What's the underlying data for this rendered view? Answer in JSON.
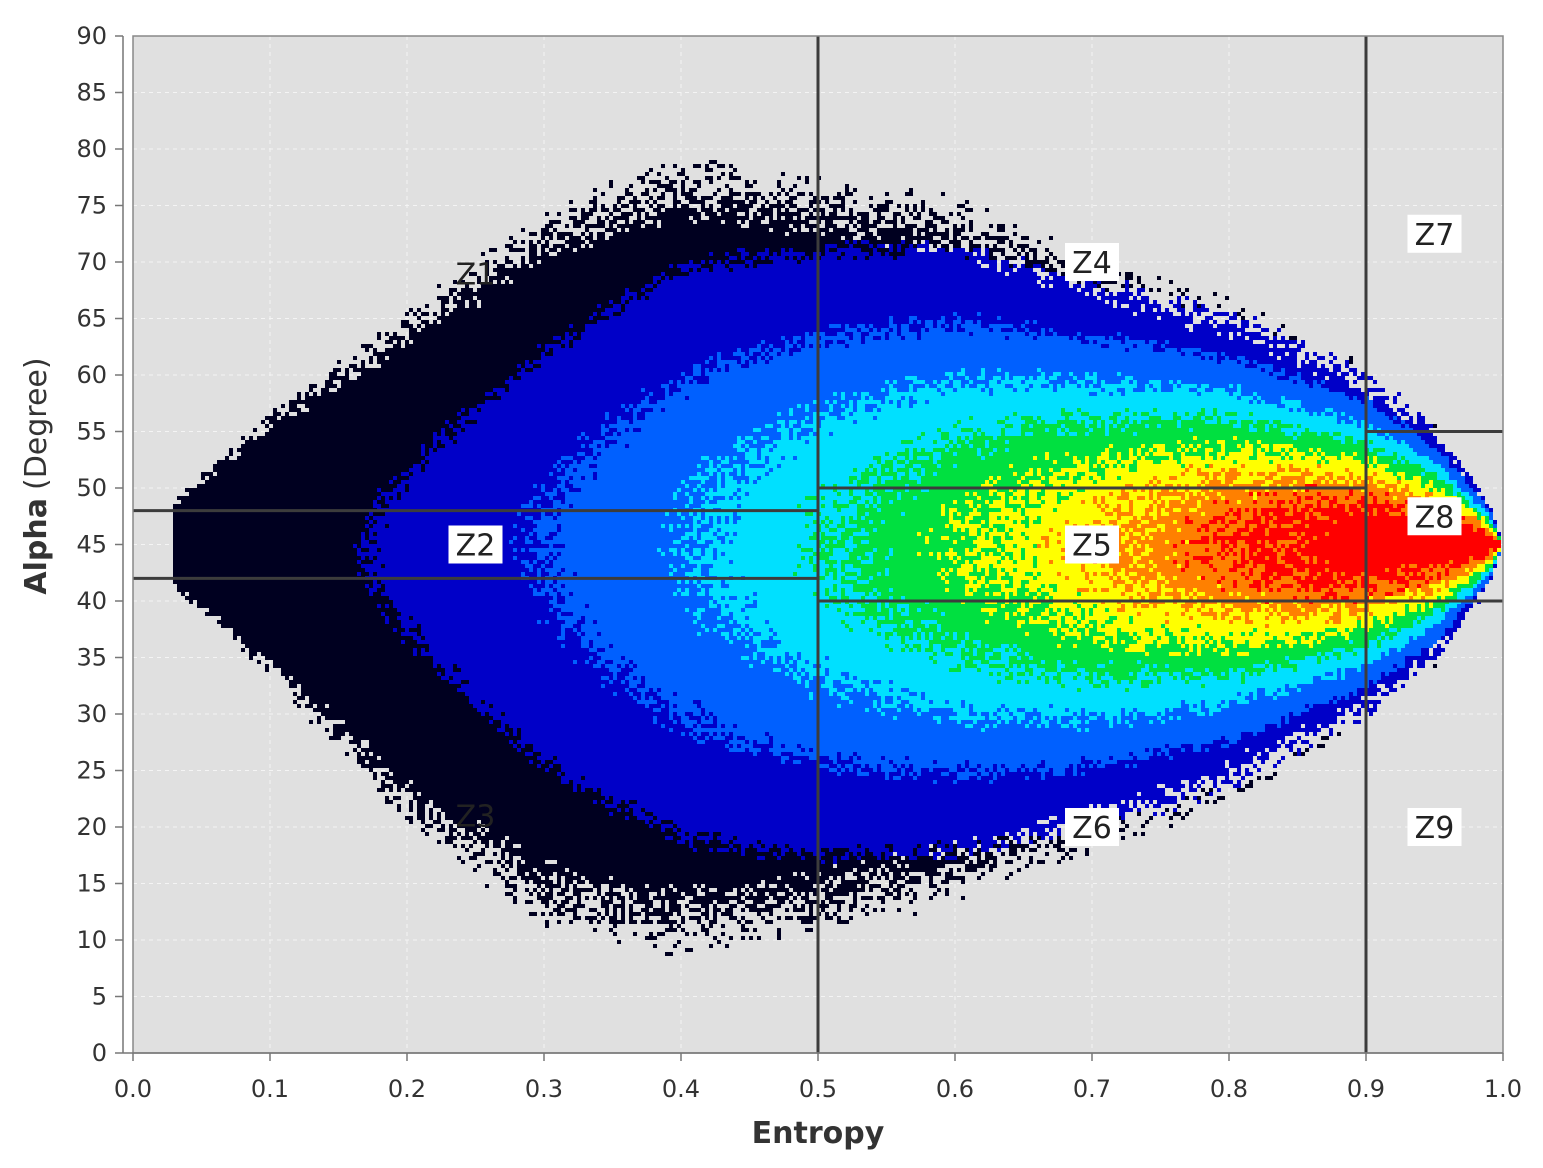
{
  "chart_data": {
    "type": "heatmap",
    "xlabel": "Entropy",
    "ylabel": "Alpha (Degree)",
    "ylabel_parts": {
      "bold": "Alpha",
      "normal": "(Degree)"
    },
    "xlim": [
      0.0,
      1.0
    ],
    "ylim": [
      0,
      90
    ],
    "x_ticks": [
      "0.0",
      "0.1",
      "0.2",
      "0.3",
      "0.4",
      "0.5",
      "0.6",
      "0.7",
      "0.8",
      "0.9",
      "1.0"
    ],
    "y_ticks": [
      "0",
      "5",
      "10",
      "15",
      "20",
      "25",
      "30",
      "35",
      "40",
      "45",
      "50",
      "55",
      "60",
      "65",
      "70",
      "75",
      "80",
      "85",
      "90"
    ],
    "x_tick_values": [
      0.0,
      0.1,
      0.2,
      0.3,
      0.4,
      0.5,
      0.6,
      0.7,
      0.8,
      0.9,
      1.0
    ],
    "y_tick_values": [
      0,
      5,
      10,
      15,
      20,
      25,
      30,
      35,
      40,
      45,
      50,
      55,
      60,
      65,
      70,
      75,
      80,
      85,
      90
    ],
    "grid": true,
    "background_color": "#e0e0e0",
    "zone_line_color": "#3c3c3c",
    "colormap": [
      "#000020",
      "#0000c8",
      "#0060ff",
      "#00e0ff",
      "#00e040",
      "#ffff00",
      "#ff8000",
      "#ff0000"
    ],
    "zone_boundaries": {
      "vertical": [
        {
          "x": 0.5,
          "y_from": 0,
          "y_to": 90
        },
        {
          "x": 0.9,
          "y_from": 0,
          "y_to": 90
        }
      ],
      "horizontal": [
        {
          "y": 48,
          "x_from": 0.0,
          "x_to": 0.5
        },
        {
          "y": 42,
          "x_from": 0.0,
          "x_to": 0.5
        },
        {
          "y": 50,
          "x_from": 0.5,
          "x_to": 0.9
        },
        {
          "y": 40,
          "x_from": 0.5,
          "x_to": 1.0
        },
        {
          "y": 55,
          "x_from": 0.9,
          "x_to": 1.0
        }
      ]
    },
    "zones": [
      {
        "label": "Z1",
        "x": 0.25,
        "y": 69,
        "boxed": false
      },
      {
        "label": "Z2",
        "x": 0.25,
        "y": 45,
        "boxed": true
      },
      {
        "label": "Z3",
        "x": 0.25,
        "y": 21,
        "boxed": false
      },
      {
        "label": "Z4",
        "x": 0.7,
        "y": 70,
        "boxed": true
      },
      {
        "label": "Z5",
        "x": 0.7,
        "y": 45,
        "boxed": true
      },
      {
        "label": "Z6",
        "x": 0.7,
        "y": 20,
        "boxed": true
      },
      {
        "label": "Z7",
        "x": 0.95,
        "y": 72.5,
        "boxed": true
      },
      {
        "label": "Z8",
        "x": 0.95,
        "y": 47.5,
        "boxed": true
      },
      {
        "label": "Z9",
        "x": 0.95,
        "y": 20,
        "boxed": true
      }
    ],
    "density_envelope": {
      "description_free_params": true,
      "center_alpha": 45,
      "points": [
        {
          "entropy": 0.03,
          "alpha_min": 41,
          "alpha_max": 49
        },
        {
          "entropy": 0.1,
          "alpha_min": 33,
          "alpha_max": 57
        },
        {
          "entropy": 0.2,
          "alpha_min": 20,
          "alpha_max": 66
        },
        {
          "entropy": 0.3,
          "alpha_min": 11,
          "alpha_max": 75
        },
        {
          "entropy": 0.4,
          "alpha_min": 8,
          "alpha_max": 80
        },
        {
          "entropy": 0.5,
          "alpha_min": 10,
          "alpha_max": 78
        },
        {
          "entropy": 0.6,
          "alpha_min": 13,
          "alpha_max": 76
        },
        {
          "entropy": 0.7,
          "alpha_min": 17,
          "alpha_max": 71
        },
        {
          "entropy": 0.8,
          "alpha_min": 22,
          "alpha_max": 67
        },
        {
          "entropy": 0.9,
          "alpha_min": 29,
          "alpha_max": 61
        },
        {
          "entropy": 0.95,
          "alpha_min": 34,
          "alpha_max": 56
        },
        {
          "entropy": 0.99,
          "alpha_min": 41,
          "alpha_max": 49
        },
        {
          "entropy": 1.0,
          "alpha_min": 45,
          "alpha_max": 45
        }
      ]
    }
  }
}
